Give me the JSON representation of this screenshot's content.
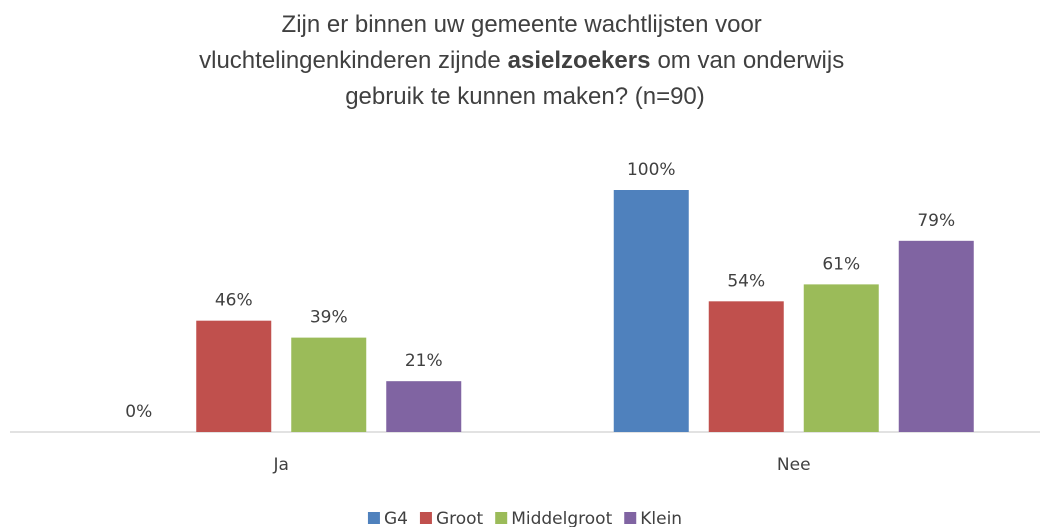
{
  "chart_data": {
    "type": "bar",
    "title": [
      "Zijn er binnen uw gemeente wachtlijsten voor",
      "vluchtelingenkinderen zijnde",
      "asielzoekers",
      "om van onderwijs",
      "gebruik te kunnen maken? (n=90)"
    ],
    "categories": [
      "Ja",
      "Nee"
    ],
    "series": [
      {
        "name": "G4",
        "color": "#4f81bd",
        "values": [
          0,
          100
        ],
        "value_labels": [
          "0%",
          "100%"
        ]
      },
      {
        "name": "Groot",
        "color": "#c0504d",
        "values": [
          46,
          54
        ],
        "value_labels": [
          "46%",
          "54%"
        ]
      },
      {
        "name": "Middelgroot",
        "color": "#9bbb59",
        "values": [
          39,
          61
        ],
        "value_labels": [
          "39%",
          "61%"
        ]
      },
      {
        "name": "Klein",
        "color": "#8064a2",
        "values": [
          21,
          79
        ],
        "value_labels": [
          "21%",
          "79%"
        ]
      }
    ],
    "legend": "bottom"
  }
}
